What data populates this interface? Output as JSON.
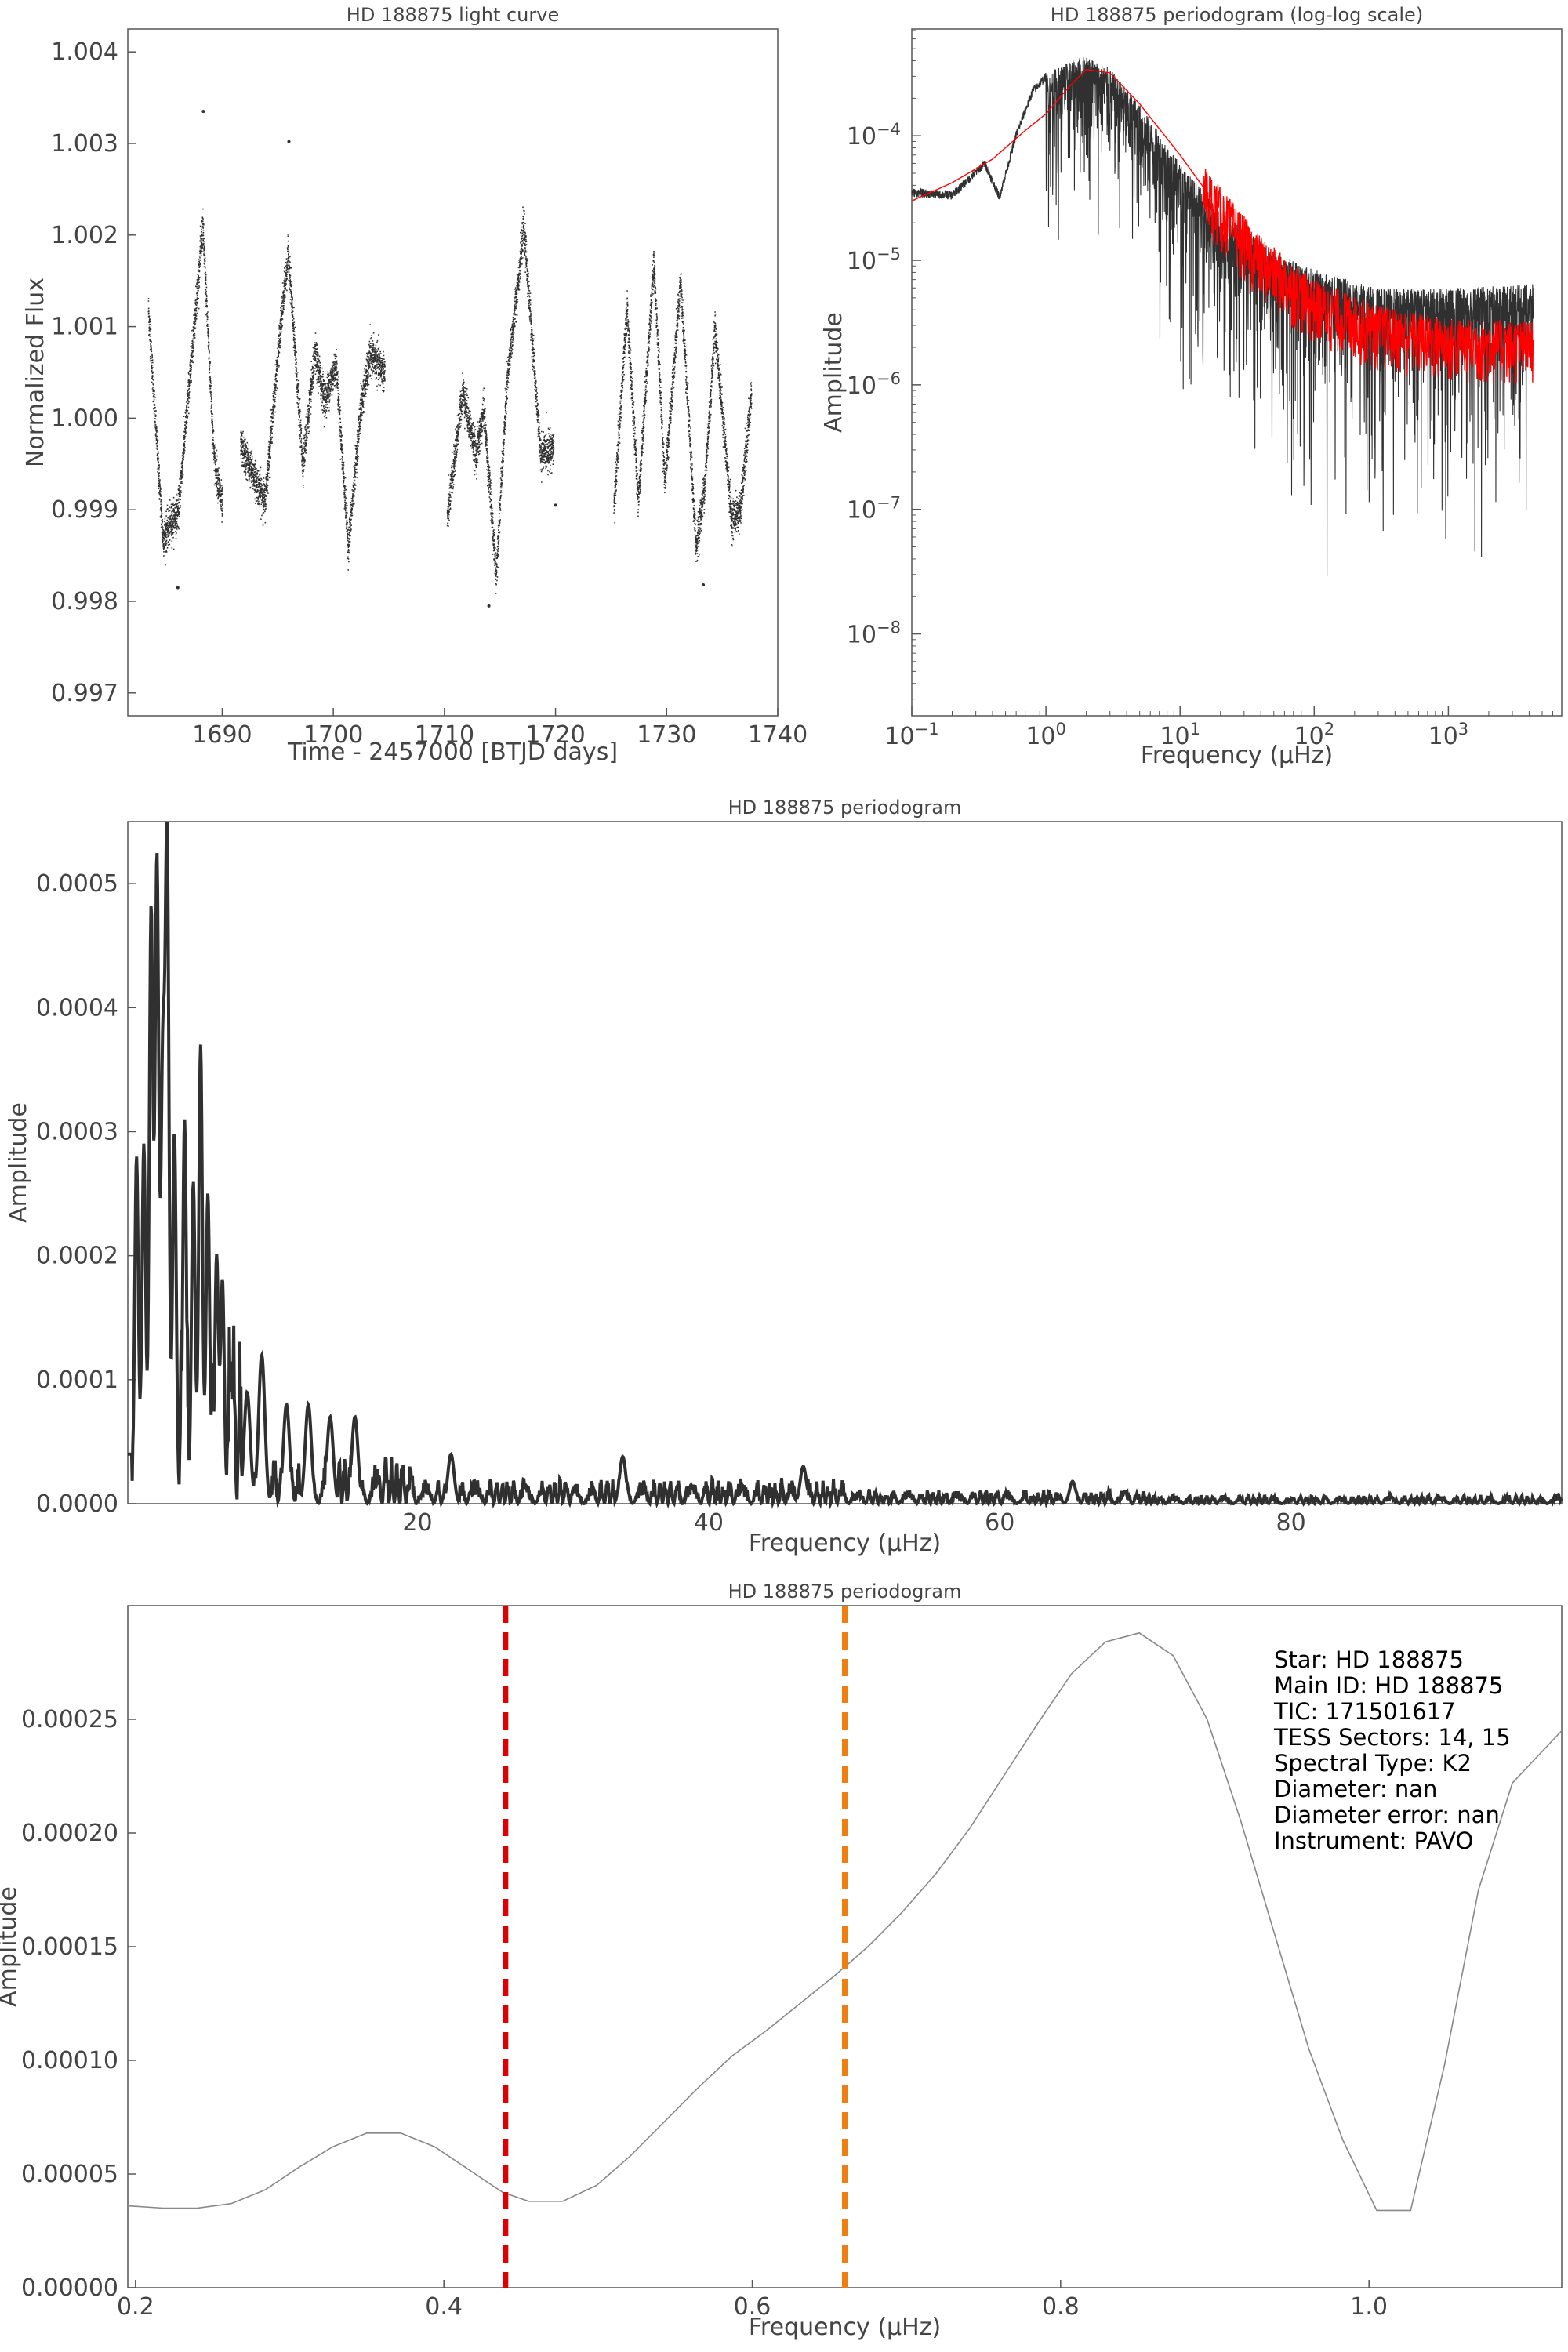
{
  "colors": {
    "trace": "#303030",
    "smooth": "#ff0000",
    "thin": "#888888",
    "marker_red": "#dd0000",
    "marker_orange": "#f07f11",
    "frame": "#555555"
  },
  "chart_data": [
    {
      "id": "lightcurve",
      "type": "scatter",
      "title": "HD 188875 light curve",
      "xlabel": "Time - 2457000 [BTJD days]",
      "ylabel": "Normalized Flux",
      "xlim": [
        1681.5,
        1740
      ],
      "ylim": [
        0.99675,
        1.00425
      ],
      "xticks": [
        1690,
        1700,
        1710,
        1720,
        1730,
        1740
      ],
      "yticks": [
        0.997,
        0.998,
        0.999,
        1.0,
        1.001,
        1.002,
        1.003,
        1.004
      ],
      "ytick_labels": [
        "0.997",
        "0.998",
        "0.999",
        "1.000",
        "1.001",
        "1.002",
        "1.003",
        "1.004"
      ],
      "segments": [
        [
          1683.3,
          1690.0
        ],
        [
          1691.6,
          1704.6
        ],
        [
          1710.2,
          1719.8
        ],
        [
          1725.2,
          1737.6
        ]
      ],
      "control_points": [
        [
          1683.3,
          1.0012
        ],
        [
          1684.6,
          0.9987
        ],
        [
          1686.0,
          0.999
        ],
        [
          1688.2,
          1.0021
        ],
        [
          1689.2,
          0.9996
        ],
        [
          1690.0,
          0.999
        ],
        [
          1691.6,
          0.9997
        ],
        [
          1693.8,
          0.9991
        ],
        [
          1695.2,
          1.001
        ],
        [
          1695.9,
          1.0018
        ],
        [
          1697.2,
          0.9995
        ],
        [
          1698.3,
          1.0007
        ],
        [
          1699.2,
          1.0002
        ],
        [
          1700.2,
          1.0006
        ],
        [
          1701.3,
          0.9986
        ],
        [
          1702.4,
          1.0001
        ],
        [
          1703.3,
          1.0007
        ],
        [
          1704.6,
          1.0005
        ],
        [
          1710.2,
          0.9989
        ],
        [
          1711.6,
          1.0003
        ],
        [
          1712.8,
          0.9996
        ],
        [
          1713.5,
          1.0001
        ],
        [
          1714.6,
          0.9983
        ],
        [
          1715.6,
          1.0004
        ],
        [
          1717.1,
          1.0021
        ],
        [
          1718.6,
          0.9996
        ],
        [
          1719.8,
          0.9997
        ],
        [
          1725.2,
          0.999
        ],
        [
          1726.4,
          1.0012
        ],
        [
          1727.4,
          0.9991
        ],
        [
          1728.8,
          1.0017
        ],
        [
          1729.8,
          0.9993
        ],
        [
          1731.2,
          1.0015
        ],
        [
          1732.6,
          0.9986
        ],
        [
          1733.4,
          0.9993
        ],
        [
          1734.3,
          1.001
        ],
        [
          1735.8,
          0.9989
        ],
        [
          1736.6,
          0.999
        ],
        [
          1737.6,
          1.0003
        ]
      ],
      "scatter": 0.00018,
      "outliers": [
        [
          1688.3,
          1.00335
        ],
        [
          1696.0,
          1.00302
        ],
        [
          1686.0,
          0.99815
        ],
        [
          1714.0,
          0.99795
        ],
        [
          1733.3,
          0.99818
        ],
        [
          1720.0,
          0.99905
        ]
      ]
    },
    {
      "id": "loglog",
      "type": "line",
      "title": "HD 188875 periodogram (log-log scale)",
      "xlabel": "Frequency (μHz)",
      "ylabel": "Amplitude",
      "xscale": "log",
      "yscale": "log",
      "xlim": [
        0.1,
        7000
      ],
      "ylim": [
        2.2e-09,
        0.00072
      ],
      "xticks": [
        0.1,
        1,
        10,
        100,
        1000
      ],
      "yticks": [
        1e-08,
        1e-07,
        1e-06,
        1e-05,
        0.0001
      ],
      "xtick_base": "10",
      "xtick_exp": [
        "−1",
        "0",
        "1",
        "2",
        "3"
      ],
      "ytick_base": "10",
      "ytick_exp": [
        "−8",
        "−7",
        "−6",
        "−5",
        "−4"
      ],
      "raw_envelope": [
        [
          0.1,
          3.8e-05
        ],
        [
          0.2,
          3.6e-05
        ],
        [
          0.3,
          5.5e-05
        ],
        [
          0.35,
          6.5e-05
        ],
        [
          0.45,
          3.5e-05
        ],
        [
          0.6,
          0.00011
        ],
        [
          0.8,
          0.00025
        ],
        [
          1.0,
          0.00032
        ],
        [
          1.5,
          0.0004
        ],
        [
          2.0,
          0.00045
        ],
        [
          3.0,
          0.00035
        ],
        [
          5.0,
          0.00018
        ],
        [
          10,
          6e-05
        ],
        [
          20,
          2.5e-05
        ],
        [
          50,
          1.2e-05
        ],
        [
          100,
          8.5e-06
        ],
        [
          300,
          6e-06
        ],
        [
          1000,
          6e-06
        ],
        [
          4300,
          6.5e-06
        ]
      ],
      "smooth_curve": [
        [
          0.1,
          3e-05
        ],
        [
          0.2,
          4.2e-05
        ],
        [
          0.4,
          6.5e-05
        ],
        [
          0.7,
          0.00011
        ],
        [
          1.0,
          0.00015
        ],
        [
          1.5,
          0.00025
        ],
        [
          2.0,
          0.00034
        ],
        [
          3.0,
          0.00032
        ],
        [
          5.0,
          0.00018
        ],
        [
          10,
          7e-05
        ],
        [
          20,
          2.5e-05
        ],
        [
          40,
          1e-05
        ],
        [
          100,
          4.5e-06
        ],
        [
          300,
          2.8e-06
        ],
        [
          1000,
          2.2e-06
        ],
        [
          4300,
          2.1e-06
        ]
      ],
      "fmax": 4300
    },
    {
      "id": "linear",
      "type": "line",
      "title": "HD 188875 periodogram",
      "xlabel": "Frequency (μHz)",
      "ylabel": "Amplitude",
      "xlim": [
        0.1,
        98.6
      ],
      "ylim": [
        0,
        0.00055
      ],
      "xticks": [
        20,
        40,
        60,
        80
      ],
      "yticks": [
        0,
        0.0001,
        0.0002,
        0.0003,
        0.0004,
        0.0005
      ],
      "ytick_labels": [
        "0.0000",
        "0.0001",
        "0.0002",
        "0.0003",
        "0.0004",
        "0.0005"
      ],
      "peaks": [
        [
          0.7,
          0.00028
        ],
        [
          1.2,
          0.00029
        ],
        [
          1.7,
          0.00048
        ],
        [
          2.1,
          0.00052
        ],
        [
          2.5,
          0.00035
        ],
        [
          2.8,
          0.000533
        ],
        [
          3.3,
          0.0003
        ],
        [
          4.0,
          0.00031
        ],
        [
          4.6,
          0.00026
        ],
        [
          5.1,
          0.00037
        ],
        [
          5.6,
          0.00025
        ],
        [
          6.2,
          0.0002
        ],
        [
          6.6,
          0.00018
        ],
        [
          7.2,
          0.000115
        ],
        [
          8.3,
          9e-05
        ],
        [
          9.3,
          0.00012
        ],
        [
          11.0,
          8e-05
        ],
        [
          12.5,
          8e-05
        ],
        [
          14.0,
          7e-05
        ],
        [
          15.7,
          7e-05
        ],
        [
          22.3,
          4e-05
        ],
        [
          34.1,
          3.8e-05
        ],
        [
          46.5,
          3e-05
        ],
        [
          65.0,
          1.8e-05
        ]
      ]
    },
    {
      "id": "zoom",
      "type": "line",
      "title": "HD 188875 periodogram",
      "xlabel": "Frequency (μHz)",
      "ylabel": "Amplitude",
      "xlim": [
        0.195,
        1.125
      ],
      "ylim": [
        0,
        0.0003
      ],
      "xticks": [
        0.2,
        0.4,
        0.6,
        0.8,
        1.0
      ],
      "xtick_labels": [
        "0.2",
        "0.4",
        "0.6",
        "0.8",
        "1.0"
      ],
      "yticks": [
        0,
        5e-05,
        0.0001,
        0.00015,
        0.0002,
        0.00025
      ],
      "ytick_labels": [
        "0.00000",
        "0.00005",
        "0.00010",
        "0.00015",
        "0.00020",
        "0.00025"
      ],
      "x": [
        0.195,
        0.218,
        0.24,
        0.262,
        0.284,
        0.306,
        0.328,
        0.35,
        0.372,
        0.394,
        0.416,
        0.438,
        0.455,
        0.477,
        0.499,
        0.521,
        0.543,
        0.565,
        0.587,
        0.609,
        0.631,
        0.653,
        0.675,
        0.697,
        0.719,
        0.741,
        0.763,
        0.785,
        0.807,
        0.829,
        0.851,
        0.873,
        0.895,
        0.917,
        0.939,
        0.961,
        0.983,
        1.005,
        1.027,
        1.049,
        1.071,
        1.093,
        1.125
      ],
      "y": [
        3.6e-05,
        3.5e-05,
        3.5e-05,
        3.7e-05,
        4.3e-05,
        5.3e-05,
        6.2e-05,
        6.8e-05,
        6.8e-05,
        6.2e-05,
        5.2e-05,
        4.2e-05,
        3.8e-05,
        3.8e-05,
        4.5e-05,
        5.8e-05,
        7.3e-05,
        8.8e-05,
        0.000102,
        0.000113,
        0.000125,
        0.000137,
        0.00015,
        0.000165,
        0.000182,
        0.000202,
        0.000225,
        0.000248,
        0.00027,
        0.000284,
        0.000288,
        0.000278,
        0.00025,
        0.000205,
        0.000155,
        0.000105,
        6.5e-05,
        3.4e-05,
        3.4e-05,
        9.8e-05,
        0.000175,
        0.000222,
        0.000245
      ],
      "vlines": [
        {
          "x": 0.44,
          "color": "#dd0000"
        },
        {
          "x": 0.66,
          "color": "#f07f11"
        }
      ],
      "annotation": [
        "Star: HD 188875",
        "Main ID: HD 188875",
        "TIC: 171501617",
        "TESS Sectors: 14, 15",
        "Spectral Type: K2",
        "Diameter: nan",
        "Diameter error: nan",
        "Instrument: PAVO"
      ]
    }
  ]
}
